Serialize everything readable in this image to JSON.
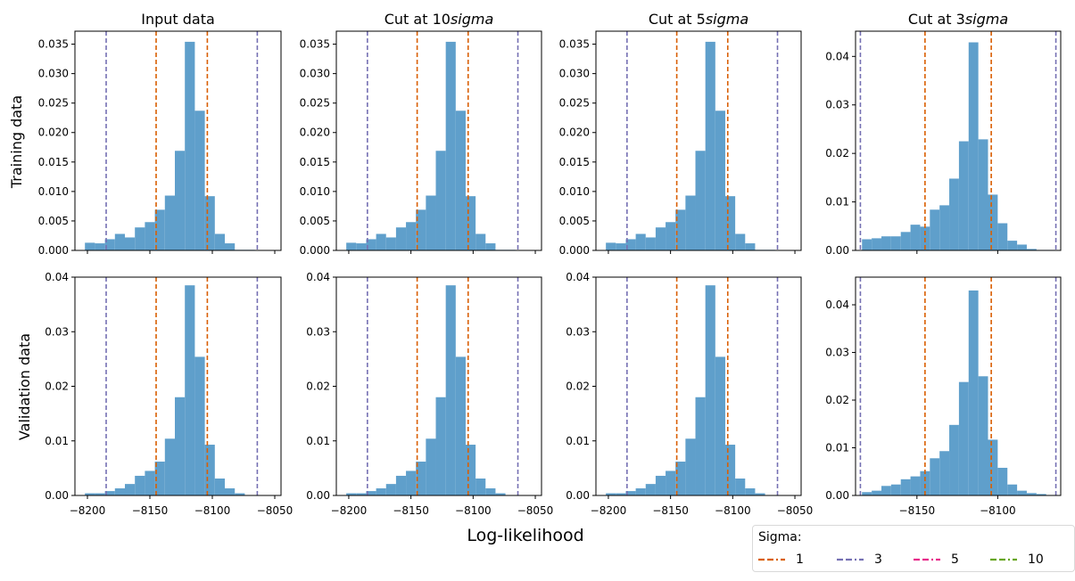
{
  "chart_data": {
    "type": "bar",
    "subtype": "histogram-grid",
    "xlabel": "Log-likelihood",
    "row_labels": [
      "Training data",
      "Validation data"
    ],
    "column_titles": [
      {
        "prefix": "Input data",
        "italic": ""
      },
      {
        "prefix": "Cut at 10",
        "italic": "sigma"
      },
      {
        "prefix": "Cut at 5",
        "italic": "sigma"
      },
      {
        "prefix": "Cut at 3",
        "italic": "sigma"
      }
    ],
    "bar_color": "#5f9fcb",
    "legend": {
      "title": "Sigma:",
      "placement": "bottom-right",
      "entries": [
        {
          "label": "1",
          "color": "#d95f02"
        },
        {
          "label": "3",
          "color": "#7570b3"
        },
        {
          "label": "5",
          "color": "#e7298a"
        },
        {
          "label": "10",
          "color": "#66a61e"
        }
      ]
    },
    "sigma_lines": [
      {
        "sigma": "1",
        "color": "#d95f02",
        "x": [
          -8145,
          -8104
        ]
      },
      {
        "sigma": "3",
        "color": "#7570b3",
        "x": [
          -8185,
          -8064
        ]
      }
    ],
    "panels": [
      {
        "row": 0,
        "col": 0,
        "xlim": [
          -8210,
          -8045
        ],
        "ylim": [
          0,
          0.0372
        ],
        "xticks": [
          -8200,
          -8150,
          -8100,
          -8050
        ],
        "show_xticklabels": false,
        "yticks": [
          "0.000",
          "0.005",
          "0.010",
          "0.015",
          "0.020",
          "0.025",
          "0.030",
          "0.035"
        ],
        "bin_start": -8202,
        "bin_width": 8,
        "values": [
          0.0013,
          0.0012,
          0.0019,
          0.0028,
          0.0022,
          0.0039,
          0.0048,
          0.0069,
          0.0093,
          0.0169,
          0.0354,
          0.0237,
          0.0092,
          0.0028,
          0.0012,
          0.0001,
          0.0001
        ]
      },
      {
        "row": 0,
        "col": 1,
        "xlim": [
          -8210,
          -8045
        ],
        "ylim": [
          0,
          0.0372
        ],
        "xticks": [
          -8200,
          -8150,
          -8100,
          -8050
        ],
        "show_xticklabels": false,
        "yticks": [
          "0.000",
          "0.005",
          "0.010",
          "0.015",
          "0.020",
          "0.025",
          "0.030",
          "0.035"
        ],
        "bin_start": -8202,
        "bin_width": 8,
        "values": [
          0.0013,
          0.0012,
          0.0019,
          0.0028,
          0.0022,
          0.0039,
          0.0048,
          0.0069,
          0.0093,
          0.0169,
          0.0354,
          0.0237,
          0.0092,
          0.0028,
          0.0012,
          0.0001,
          0.0001
        ]
      },
      {
        "row": 0,
        "col": 2,
        "xlim": [
          -8210,
          -8045
        ],
        "ylim": [
          0,
          0.0372
        ],
        "xticks": [
          -8200,
          -8150,
          -8100,
          -8050
        ],
        "show_xticklabels": false,
        "yticks": [
          "0.000",
          "0.005",
          "0.010",
          "0.015",
          "0.020",
          "0.025",
          "0.030",
          "0.035"
        ],
        "bin_start": -8202,
        "bin_width": 8,
        "values": [
          0.0013,
          0.0012,
          0.0019,
          0.0028,
          0.0022,
          0.0039,
          0.0048,
          0.0069,
          0.0093,
          0.0169,
          0.0354,
          0.0237,
          0.0092,
          0.0028,
          0.0012,
          0.0001,
          0.0001
        ]
      },
      {
        "row": 0,
        "col": 3,
        "xlim": [
          -8188,
          -8061
        ],
        "ylim": [
          0,
          0.0452
        ],
        "xticks": [
          -8150,
          -8100
        ],
        "show_xticklabels": false,
        "yticks": [
          "0.00",
          "0.01",
          "0.02",
          "0.03",
          "0.04"
        ],
        "bin_start": -8184,
        "bin_width": 6,
        "values": [
          0.0023,
          0.0025,
          0.0029,
          0.0029,
          0.0038,
          0.0053,
          0.0049,
          0.0084,
          0.0093,
          0.0148,
          0.0225,
          0.0429,
          0.0229,
          0.0115,
          0.0056,
          0.002,
          0.0012,
          0.0003,
          0.0001,
          0.0001
        ]
      },
      {
        "row": 1,
        "col": 0,
        "xlim": [
          -8210,
          -8045
        ],
        "ylim": [
          0,
          0.04
        ],
        "xticks": [
          -8200,
          -8150,
          -8100,
          -8050
        ],
        "show_xticklabels": true,
        "xticklabels": [
          "−8200",
          "−8150",
          "−8100",
          "−8050"
        ],
        "yticks": [
          "0.00",
          "0.01",
          "0.02",
          "0.03",
          "0.04"
        ],
        "bin_start": -8202,
        "bin_width": 8,
        "values": [
          0.0004,
          0.0004,
          0.0008,
          0.0013,
          0.0021,
          0.0036,
          0.0045,
          0.0062,
          0.0104,
          0.018,
          0.0385,
          0.0254,
          0.0093,
          0.0031,
          0.0013,
          0.0004
        ]
      },
      {
        "row": 1,
        "col": 1,
        "xlim": [
          -8210,
          -8045
        ],
        "ylim": [
          0,
          0.04
        ],
        "xticks": [
          -8200,
          -8150,
          -8100,
          -8050
        ],
        "show_xticklabels": true,
        "xticklabels": [
          "−8200",
          "−8150",
          "−8100",
          "−8050"
        ],
        "yticks": [
          "0.00",
          "0.01",
          "0.02",
          "0.03",
          "0.04"
        ],
        "bin_start": -8202,
        "bin_width": 8,
        "values": [
          0.0004,
          0.0004,
          0.0008,
          0.0013,
          0.0021,
          0.0036,
          0.0045,
          0.0062,
          0.0104,
          0.018,
          0.0385,
          0.0254,
          0.0093,
          0.0031,
          0.0013,
          0.0004
        ]
      },
      {
        "row": 1,
        "col": 2,
        "xlim": [
          -8210,
          -8045
        ],
        "ylim": [
          0,
          0.04
        ],
        "xticks": [
          -8200,
          -8150,
          -8100,
          -8050
        ],
        "show_xticklabels": true,
        "xticklabels": [
          "−8200",
          "−8150",
          "−8100",
          "−8050"
        ],
        "yticks": [
          "0.00",
          "0.01",
          "0.02",
          "0.03",
          "0.04"
        ],
        "bin_start": -8202,
        "bin_width": 8,
        "values": [
          0.0004,
          0.0004,
          0.0008,
          0.0013,
          0.0021,
          0.0036,
          0.0045,
          0.0062,
          0.0104,
          0.018,
          0.0385,
          0.0254,
          0.0093,
          0.0031,
          0.0013,
          0.0004
        ]
      },
      {
        "row": 1,
        "col": 3,
        "xlim": [
          -8188,
          -8061
        ],
        "ylim": [
          0,
          0.0458
        ],
        "xticks": [
          -8150,
          -8100
        ],
        "show_xticklabels": true,
        "xticklabels": [
          "−8150",
          "−8100"
        ],
        "yticks": [
          "0.00",
          "0.01",
          "0.02",
          "0.03",
          "0.04"
        ],
        "bin_start": -8184,
        "bin_width": 6,
        "values": [
          0.0007,
          0.001,
          0.002,
          0.0023,
          0.0034,
          0.004,
          0.0051,
          0.0078,
          0.0093,
          0.0148,
          0.0238,
          0.043,
          0.025,
          0.0117,
          0.0058,
          0.0023,
          0.001,
          0.0005,
          0.0003,
          0.0001
        ]
      }
    ]
  }
}
